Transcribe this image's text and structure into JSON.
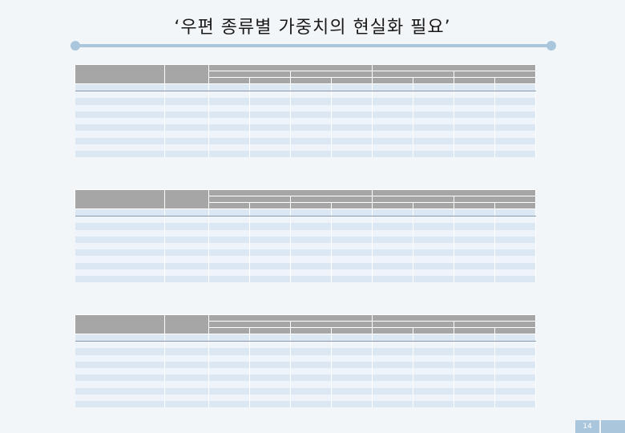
{
  "slide": {
    "title": "‘우편 종류별 가중치의 현실화 필요’",
    "page_number": "14"
  },
  "tables": [
    {
      "caption": "",
      "header_top": [
        "",
        "",
        "",
        ""
      ],
      "header_mid": [
        "",
        "",
        "",
        ""
      ],
      "header_sub": [
        "",
        "",
        "",
        "",
        "",
        "",
        "",
        ""
      ],
      "col_label": "",
      "col_weight": "",
      "rows": [
        {
          "label": "",
          "weight": "",
          "vals": [
            "",
            "",
            "",
            "",
            "",
            "",
            "",
            ""
          ]
        },
        {
          "label": "",
          "weight": "",
          "vals": [
            "",
            "",
            "",
            "",
            "",
            "",
            "",
            ""
          ]
        },
        {
          "label": "",
          "weight": "",
          "vals": [
            "",
            "",
            "",
            "",
            "",
            "",
            "",
            ""
          ]
        },
        {
          "label": "",
          "weight": "",
          "vals": [
            "",
            "",
            "",
            "",
            "",
            "",
            "",
            ""
          ]
        },
        {
          "label": "",
          "weight": "",
          "vals": [
            "",
            "",
            "",
            "",
            "",
            "",
            "",
            ""
          ]
        },
        {
          "label": "",
          "weight": "",
          "vals": [
            "",
            "",
            "",
            "",
            "",
            "",
            "",
            ""
          ]
        },
        {
          "label": "",
          "weight": "",
          "vals": [
            "",
            "",
            "",
            "",
            "",
            "",
            "",
            ""
          ]
        },
        {
          "label": "",
          "weight": "",
          "vals": [
            "",
            "",
            "",
            "",
            "",
            "",
            "",
            ""
          ]
        },
        {
          "label": "",
          "weight": "",
          "vals": [
            "",
            "",
            "",
            "",
            "",
            "",
            "",
            ""
          ]
        },
        {
          "label": "",
          "weight": "",
          "vals": [
            "",
            "",
            "",
            "",
            "",
            "",
            "",
            ""
          ]
        },
        {
          "label": "",
          "weight": "",
          "vals": [
            "",
            "",
            "",
            "",
            "",
            "",
            "",
            ""
          ]
        }
      ]
    },
    {
      "caption": "",
      "header_top": [
        "",
        "",
        "",
        ""
      ],
      "header_mid": [
        "",
        "",
        "",
        ""
      ],
      "header_sub": [
        "",
        "",
        "",
        "",
        "",
        "",
        "",
        ""
      ],
      "col_label": "",
      "col_weight": "",
      "rows": [
        {
          "label": "",
          "weight": "",
          "vals": [
            "",
            "",
            "",
            "",
            "",
            "",
            "",
            ""
          ]
        },
        {
          "label": "",
          "weight": "",
          "vals": [
            "",
            "",
            "",
            "",
            "",
            "",
            "",
            ""
          ]
        },
        {
          "label": "",
          "weight": "",
          "vals": [
            "",
            "",
            "",
            "",
            "",
            "",
            "",
            ""
          ]
        },
        {
          "label": "",
          "weight": "",
          "vals": [
            "",
            "",
            "",
            "",
            "",
            "",
            "",
            ""
          ]
        },
        {
          "label": "",
          "weight": "",
          "vals": [
            "",
            "",
            "",
            "",
            "",
            "",
            "",
            ""
          ]
        },
        {
          "label": "",
          "weight": "",
          "vals": [
            "",
            "",
            "",
            "",
            "",
            "",
            "",
            ""
          ]
        },
        {
          "label": "",
          "weight": "",
          "vals": [
            "",
            "",
            "",
            "",
            "",
            "",
            "",
            ""
          ]
        },
        {
          "label": "",
          "weight": "",
          "vals": [
            "",
            "",
            "",
            "",
            "",
            "",
            "",
            ""
          ]
        },
        {
          "label": "",
          "weight": "",
          "vals": [
            "",
            "",
            "",
            "",
            "",
            "",
            "",
            ""
          ]
        },
        {
          "label": "",
          "weight": "",
          "vals": [
            "",
            "",
            "",
            "",
            "",
            "",
            "",
            ""
          ]
        },
        {
          "label": "",
          "weight": "",
          "vals": [
            "",
            "",
            "",
            "",
            "",
            "",
            "",
            ""
          ]
        }
      ]
    },
    {
      "caption": "",
      "header_top": [
        "",
        "",
        "",
        ""
      ],
      "header_mid": [
        "",
        "",
        "",
        ""
      ],
      "header_sub": [
        "",
        "",
        "",
        "",
        "",
        "",
        "",
        ""
      ],
      "col_label": "",
      "col_weight": "",
      "rows": [
        {
          "label": "",
          "weight": "",
          "vals": [
            "",
            "",
            "",
            "",
            "",
            "",
            "",
            ""
          ]
        },
        {
          "label": "",
          "weight": "",
          "vals": [
            "",
            "",
            "",
            "",
            "",
            "",
            "",
            ""
          ]
        },
        {
          "label": "",
          "weight": "",
          "vals": [
            "",
            "",
            "",
            "",
            "",
            "",
            "",
            ""
          ]
        },
        {
          "label": "",
          "weight": "",
          "vals": [
            "",
            "",
            "",
            "",
            "",
            "",
            "",
            ""
          ]
        },
        {
          "label": "",
          "weight": "",
          "vals": [
            "",
            "",
            "",
            "",
            "",
            "",
            "",
            ""
          ]
        },
        {
          "label": "",
          "weight": "",
          "vals": [
            "",
            "",
            "",
            "",
            "",
            "",
            "",
            ""
          ]
        },
        {
          "label": "",
          "weight": "",
          "vals": [
            "",
            "",
            "",
            "",
            "",
            "",
            "",
            ""
          ]
        },
        {
          "label": "",
          "weight": "",
          "vals": [
            "",
            "",
            "",
            "",
            "",
            "",
            "",
            ""
          ]
        },
        {
          "label": "",
          "weight": "",
          "vals": [
            "",
            "",
            "",
            "",
            "",
            "",
            "",
            ""
          ]
        },
        {
          "label": "",
          "weight": "",
          "vals": [
            "",
            "",
            "",
            "",
            "",
            "",
            "",
            ""
          ]
        },
        {
          "label": "",
          "weight": "",
          "vals": [
            "",
            "",
            "",
            "",
            "",
            "",
            "",
            ""
          ]
        }
      ]
    }
  ]
}
